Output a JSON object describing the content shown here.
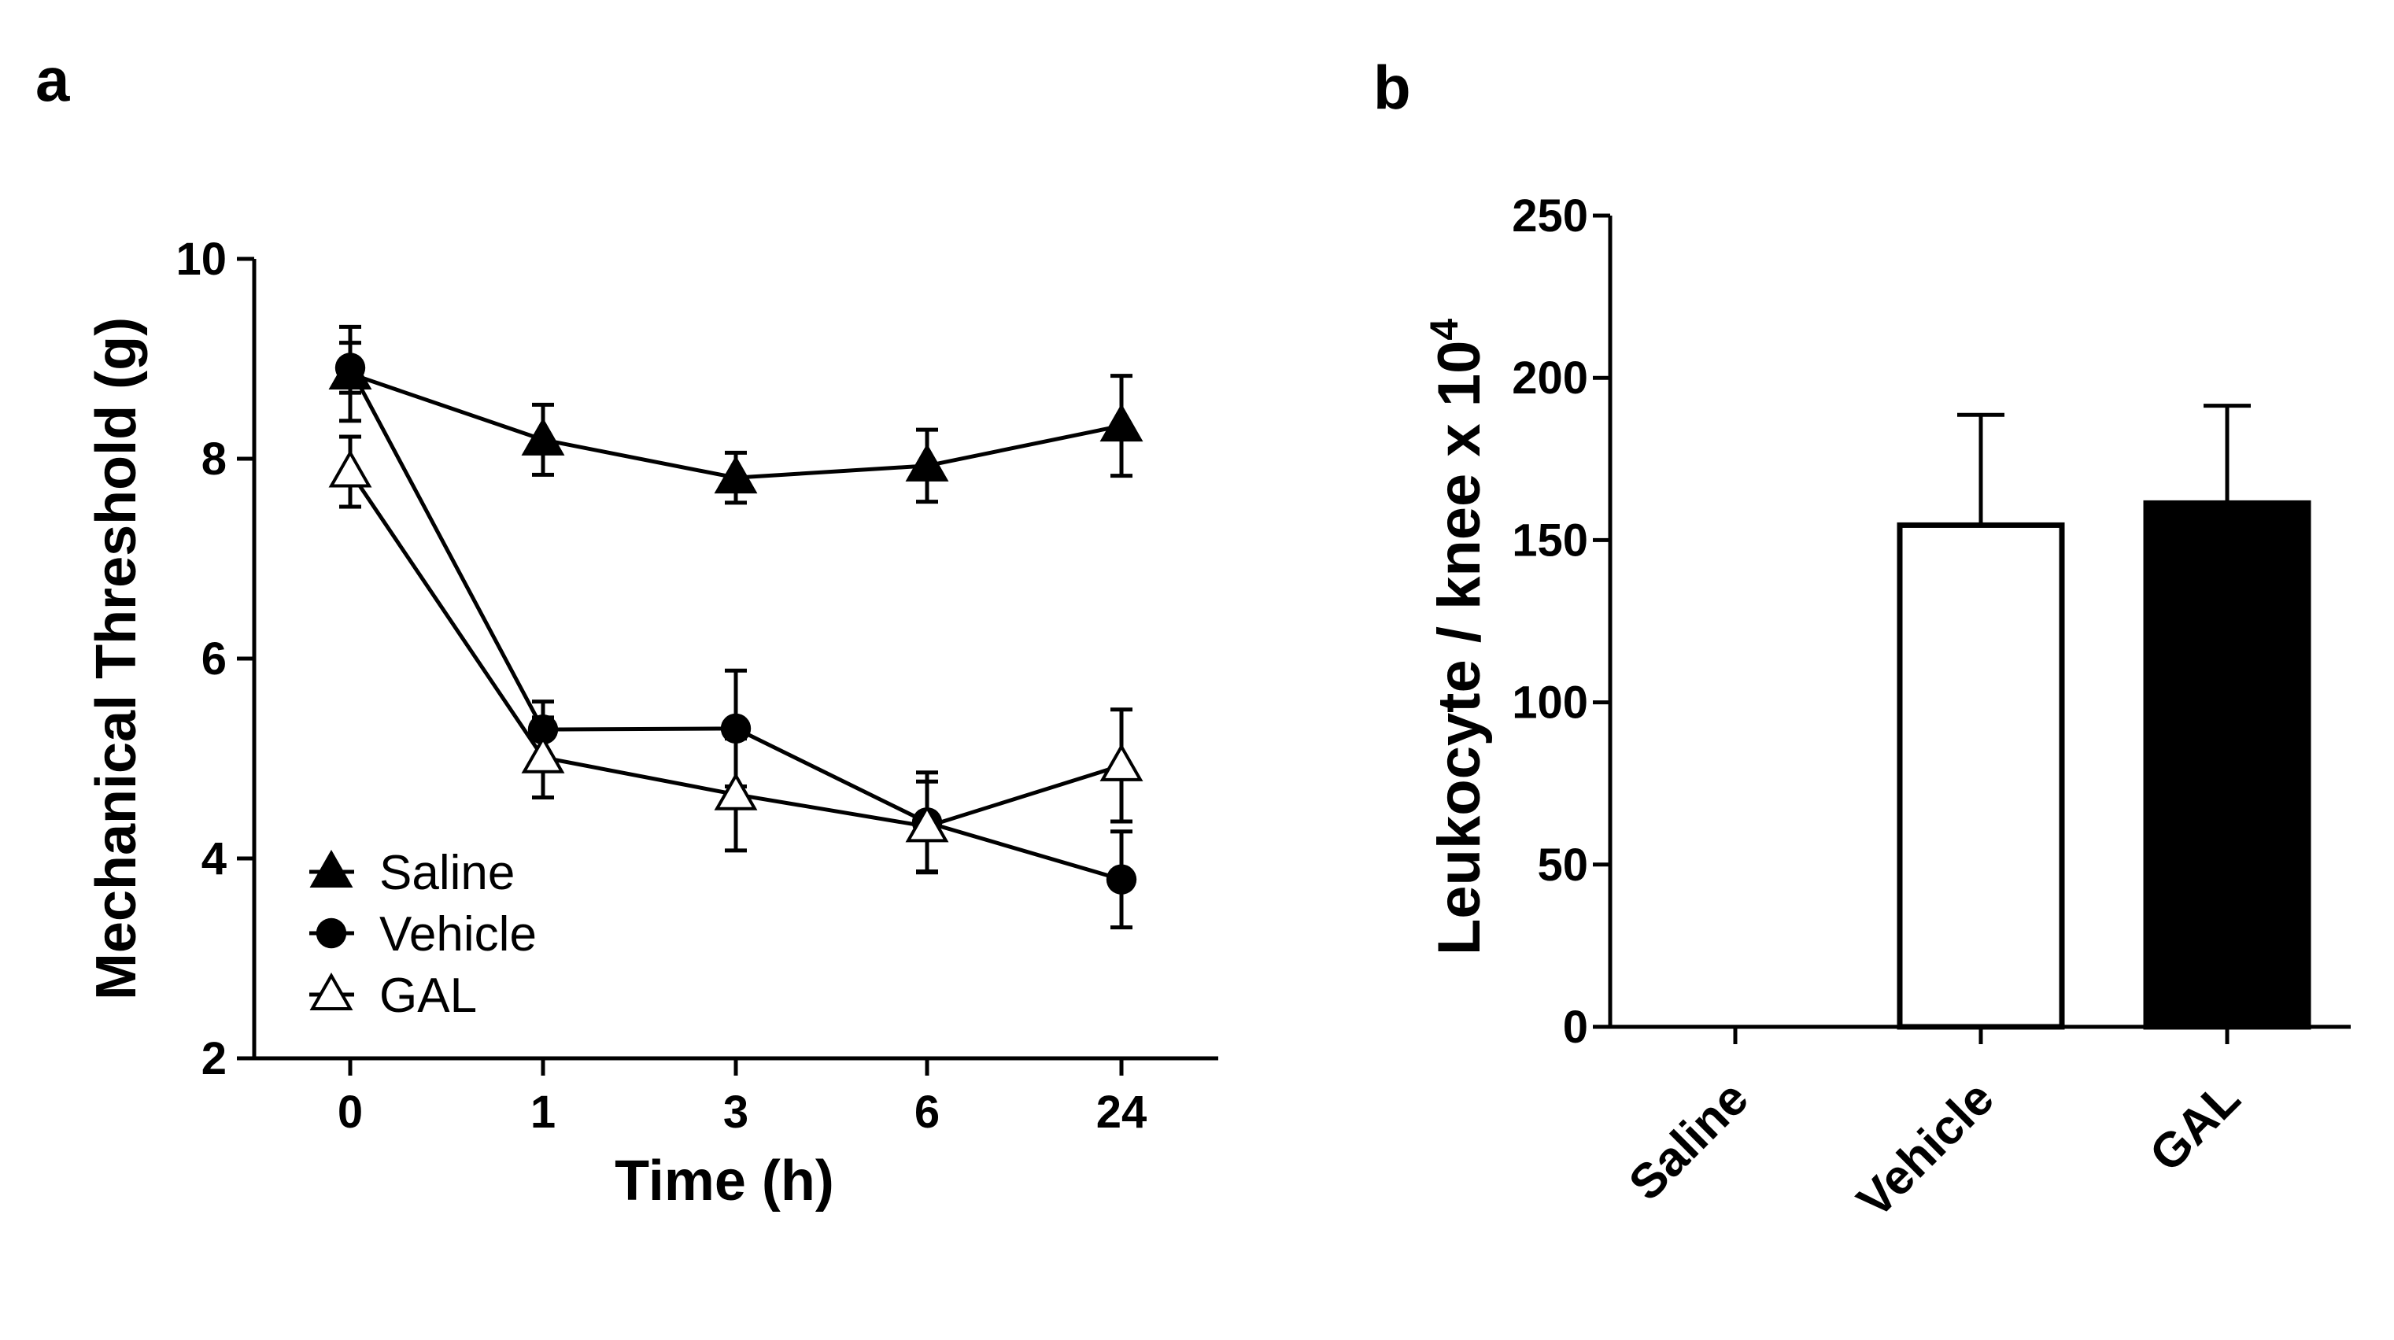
{
  "panel_labels": [
    "a",
    "b"
  ],
  "chart_data": [
    {
      "type": "line",
      "panel": "a",
      "xlabel": "Time (h)",
      "ylabel": "Mechanical Threshold (g)",
      "x": [
        "0",
        "1",
        "3",
        "6",
        "24"
      ],
      "ylim": [
        2,
        10
      ],
      "yticks": [
        "2",
        "4",
        "6",
        "8",
        "10"
      ],
      "legend_position": "bottom-left",
      "series": [
        {
          "name": "Saline",
          "marker": "filled-triangle",
          "values": [
            8.85,
            8.19,
            7.81,
            7.93,
            8.33
          ],
          "errors": [
            0.47,
            0.35,
            0.25,
            0.36,
            0.5
          ]
        },
        {
          "name": "Vehicle",
          "marker": "filled-circle",
          "values": [
            8.91,
            5.29,
            5.3,
            4.36,
            3.79
          ],
          "errors": [
            0.25,
            0.28,
            0.58,
            0.5,
            0.48
          ]
        },
        {
          "name": "GAL",
          "marker": "open-triangle",
          "values": [
            7.87,
            5.01,
            4.64,
            4.32,
            4.93
          ],
          "errors": [
            0.35,
            0.4,
            0.56,
            0.45,
            0.56
          ]
        }
      ]
    },
    {
      "type": "bar",
      "panel": "b",
      "ylabel": "Leukocyte / knee x 10",
      "ylabel_superscript": "4",
      "categories": [
        "Saline",
        "Vehicle",
        "GAL"
      ],
      "values": [
        0,
        154.6,
        161.4
      ],
      "errors": [
        0,
        34,
        30
      ],
      "fills": [
        "#ffffff",
        "#ffffff",
        "#000000"
      ],
      "ylim": [
        0,
        250
      ],
      "yticks": [
        "0",
        "50",
        "100",
        "150",
        "200",
        "250"
      ]
    }
  ]
}
